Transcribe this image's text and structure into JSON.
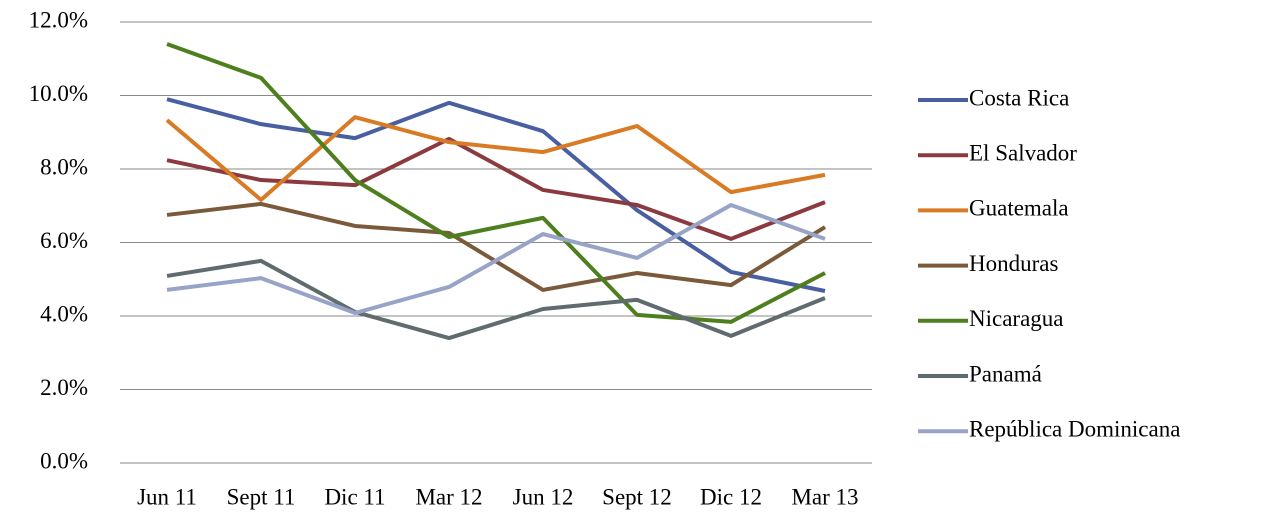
{
  "chart_data": {
    "type": "line",
    "categories": [
      "Jun 11",
      "Sept 11",
      "Dic 11",
      "Mar 12",
      "Jun 12",
      "Sept 12",
      "Dic 12",
      "Mar 13"
    ],
    "series": [
      {
        "name": "Costa Rica",
        "color": "#4a5fa0",
        "values": [
          9.9,
          9.22,
          8.84,
          9.8,
          9.03,
          6.88,
          5.2,
          4.68
        ]
      },
      {
        "name": "El Salvador",
        "color": "#8b3a3f",
        "values": [
          8.24,
          7.7,
          7.56,
          8.82,
          7.43,
          7.02,
          6.1,
          7.1
        ]
      },
      {
        "name": "Guatemala",
        "color": "#d97a24",
        "values": [
          9.33,
          7.16,
          9.41,
          8.73,
          8.46,
          9.17,
          7.37,
          7.84
        ]
      },
      {
        "name": "Honduras",
        "color": "#7a5a3a",
        "values": [
          6.75,
          7.05,
          6.45,
          6.26,
          4.71,
          5.17,
          4.84,
          6.42
        ]
      },
      {
        "name": "Nicaragua",
        "color": "#4e7f1e",
        "values": [
          11.4,
          10.48,
          7.7,
          6.15,
          6.67,
          4.03,
          3.84,
          5.17
        ]
      },
      {
        "name": "Panamá",
        "color": "#5f6b6e",
        "values": [
          5.09,
          5.5,
          4.11,
          3.4,
          4.19,
          4.44,
          3.46,
          4.49
        ]
      },
      {
        "name": "República Dominicana",
        "color": "#98a3c8",
        "values": [
          4.71,
          5.03,
          4.08,
          4.79,
          6.23,
          5.58,
          7.02,
          6.1
        ]
      }
    ],
    "ylim": [
      0,
      12
    ],
    "yticks": [
      {
        "value": 0,
        "label": "0.0%"
      },
      {
        "value": 2,
        "label": "2.0%"
      },
      {
        "value": 4,
        "label": "4.0%"
      },
      {
        "value": 6,
        "label": "6.0%"
      },
      {
        "value": 8,
        "label": "8.0%"
      },
      {
        "value": 10,
        "label": "10.0%"
      },
      {
        "value": 12,
        "label": "12.0%"
      }
    ],
    "grid": true,
    "legend": "right"
  }
}
